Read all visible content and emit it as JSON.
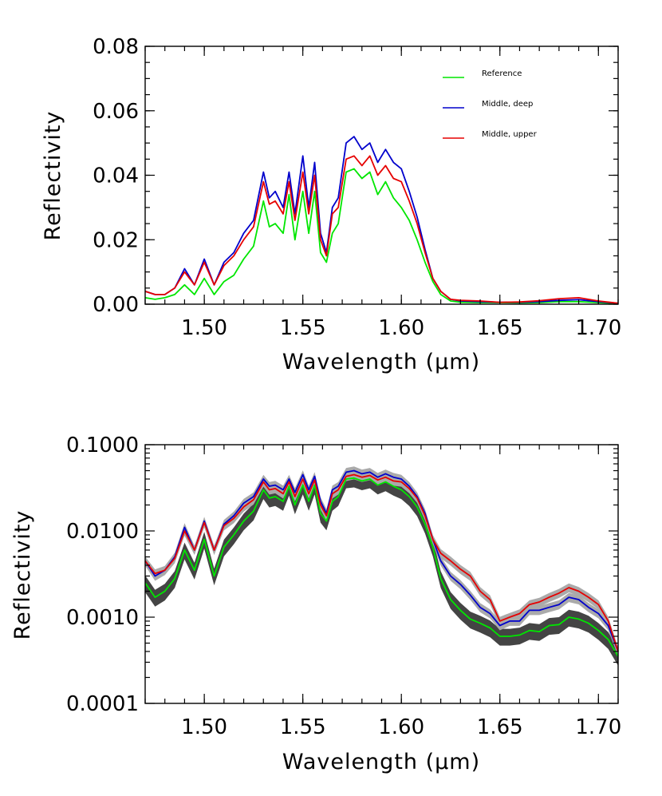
{
  "chart_data": [
    {
      "type": "line",
      "title": "",
      "xlabel": "Wavelength (μm)",
      "ylabel": "Reflectivity",
      "xlim": [
        1.47,
        1.71
      ],
      "ylim": [
        0.0,
        0.08
      ],
      "yscale": "linear",
      "xticks": [
        1.5,
        1.55,
        1.6,
        1.65,
        1.7
      ],
      "xtick_labels": [
        "1.50",
        "1.55",
        "1.60",
        "1.65",
        "1.70"
      ],
      "yticks": [
        0.0,
        0.02,
        0.04,
        0.06,
        0.08
      ],
      "ytick_labels": [
        "0.00",
        "0.02",
        "0.04",
        "0.06",
        "0.08"
      ],
      "grid": false,
      "legend_position": "top-right",
      "x": [
        1.47,
        1.475,
        1.48,
        1.485,
        1.49,
        1.495,
        1.5,
        1.505,
        1.51,
        1.515,
        1.52,
        1.525,
        1.53,
        1.533,
        1.536,
        1.54,
        1.543,
        1.546,
        1.55,
        1.553,
        1.556,
        1.559,
        1.562,
        1.565,
        1.568,
        1.572,
        1.576,
        1.58,
        1.584,
        1.588,
        1.592,
        1.596,
        1.6,
        1.604,
        1.608,
        1.612,
        1.616,
        1.62,
        1.625,
        1.63,
        1.64,
        1.65,
        1.66,
        1.67,
        1.68,
        1.69,
        1.7,
        1.71
      ],
      "series": [
        {
          "name": "Reference",
          "color": "#00e600",
          "values": [
            0.002,
            0.0015,
            0.002,
            0.003,
            0.006,
            0.003,
            0.008,
            0.003,
            0.007,
            0.009,
            0.014,
            0.018,
            0.032,
            0.024,
            0.025,
            0.022,
            0.034,
            0.02,
            0.035,
            0.022,
            0.035,
            0.016,
            0.013,
            0.022,
            0.025,
            0.041,
            0.042,
            0.039,
            0.041,
            0.034,
            0.038,
            0.033,
            0.03,
            0.026,
            0.02,
            0.013,
            0.007,
            0.003,
            0.001,
            0.0006,
            0.0005,
            0.0005,
            0.0004,
            0.0005,
            0.0008,
            0.0008,
            0.0005,
            0.0002
          ]
        },
        {
          "name": "Middle, deep",
          "color": "#0000cc",
          "values": [
            0.004,
            0.003,
            0.003,
            0.005,
            0.011,
            0.006,
            0.014,
            0.006,
            0.013,
            0.016,
            0.022,
            0.026,
            0.041,
            0.033,
            0.035,
            0.03,
            0.041,
            0.028,
            0.046,
            0.03,
            0.044,
            0.022,
            0.016,
            0.03,
            0.033,
            0.05,
            0.052,
            0.048,
            0.05,
            0.044,
            0.048,
            0.044,
            0.042,
            0.035,
            0.027,
            0.017,
            0.008,
            0.004,
            0.0015,
            0.001,
            0.0008,
            0.0006,
            0.0006,
            0.0008,
            0.0012,
            0.0014,
            0.0008,
            0.0003
          ]
        },
        {
          "name": "Middle, upper",
          "color": "#e60000",
          "values": [
            0.004,
            0.003,
            0.003,
            0.005,
            0.01,
            0.006,
            0.013,
            0.006,
            0.012,
            0.015,
            0.02,
            0.024,
            0.038,
            0.031,
            0.032,
            0.028,
            0.038,
            0.026,
            0.041,
            0.028,
            0.04,
            0.02,
            0.015,
            0.028,
            0.03,
            0.045,
            0.046,
            0.043,
            0.046,
            0.04,
            0.043,
            0.039,
            0.038,
            0.032,
            0.025,
            0.016,
            0.008,
            0.004,
            0.0015,
            0.0012,
            0.001,
            0.0006,
            0.0007,
            0.0011,
            0.0017,
            0.002,
            0.001,
            0.0003
          ]
        }
      ]
    },
    {
      "type": "line",
      "title": "",
      "xlabel": "Wavelength (μm)",
      "ylabel": "Reflectivity",
      "xlim": [
        1.47,
        1.71
      ],
      "ylim": [
        0.0001,
        0.1
      ],
      "yscale": "log",
      "xticks": [
        1.5,
        1.55,
        1.6,
        1.65,
        1.7
      ],
      "xtick_labels": [
        "1.50",
        "1.55",
        "1.60",
        "1.65",
        "1.70"
      ],
      "yticks": [
        0.0001,
        0.001,
        0.01,
        0.1
      ],
      "ytick_labels": [
        "0.0001",
        "0.0010",
        "0.0100",
        "0.1000"
      ],
      "grid": false,
      "band_colors": {
        "dark": "#444444",
        "light": "#aaaaaa"
      },
      "x": [
        1.47,
        1.475,
        1.48,
        1.485,
        1.49,
        1.495,
        1.5,
        1.505,
        1.51,
        1.515,
        1.52,
        1.525,
        1.53,
        1.533,
        1.536,
        1.54,
        1.543,
        1.546,
        1.55,
        1.553,
        1.556,
        1.559,
        1.562,
        1.565,
        1.568,
        1.572,
        1.576,
        1.58,
        1.584,
        1.588,
        1.592,
        1.596,
        1.6,
        1.604,
        1.608,
        1.612,
        1.616,
        1.62,
        1.625,
        1.63,
        1.635,
        1.64,
        1.645,
        1.65,
        1.655,
        1.66,
        1.665,
        1.67,
        1.675,
        1.68,
        1.685,
        1.69,
        1.695,
        1.7,
        1.705,
        1.71
      ],
      "series": [
        {
          "name": "Reference",
          "color": "#00e600",
          "values": [
            0.0025,
            0.0017,
            0.002,
            0.0028,
            0.006,
            0.0035,
            0.008,
            0.003,
            0.0065,
            0.009,
            0.013,
            0.017,
            0.03,
            0.024,
            0.025,
            0.022,
            0.033,
            0.02,
            0.034,
            0.022,
            0.034,
            0.016,
            0.013,
            0.022,
            0.025,
            0.04,
            0.041,
            0.038,
            0.04,
            0.034,
            0.037,
            0.033,
            0.03,
            0.025,
            0.019,
            0.012,
            0.0065,
            0.0028,
            0.0016,
            0.0012,
            0.00095,
            0.00085,
            0.00075,
            0.0006,
            0.0006,
            0.00062,
            0.0007,
            0.00068,
            0.0008,
            0.00082,
            0.001,
            0.00095,
            0.00085,
            0.0007,
            0.00055,
            0.00035
          ]
        },
        {
          "name": "Middle, deep",
          "color": "#0000cc",
          "values": [
            0.0045,
            0.003,
            0.0035,
            0.005,
            0.011,
            0.006,
            0.013,
            0.006,
            0.012,
            0.015,
            0.021,
            0.025,
            0.04,
            0.033,
            0.034,
            0.03,
            0.04,
            0.028,
            0.045,
            0.03,
            0.043,
            0.022,
            0.016,
            0.03,
            0.033,
            0.048,
            0.05,
            0.046,
            0.048,
            0.042,
            0.046,
            0.042,
            0.04,
            0.033,
            0.025,
            0.016,
            0.008,
            0.0045,
            0.003,
            0.0024,
            0.0018,
            0.0013,
            0.0011,
            0.0008,
            0.0009,
            0.0009,
            0.0012,
            0.0012,
            0.0013,
            0.0014,
            0.0017,
            0.0016,
            0.0013,
            0.0011,
            0.0008,
            0.0004
          ]
        },
        {
          "name": "Middle, upper",
          "color": "#e60000",
          "values": [
            0.0045,
            0.0032,
            0.0035,
            0.0048,
            0.01,
            0.006,
            0.0125,
            0.006,
            0.0115,
            0.014,
            0.019,
            0.023,
            0.037,
            0.03,
            0.031,
            0.027,
            0.037,
            0.025,
            0.04,
            0.027,
            0.039,
            0.02,
            0.015,
            0.027,
            0.03,
            0.043,
            0.045,
            0.042,
            0.044,
            0.039,
            0.042,
            0.038,
            0.037,
            0.031,
            0.024,
            0.015,
            0.008,
            0.0055,
            0.0045,
            0.0036,
            0.003,
            0.002,
            0.0016,
            0.0009,
            0.001,
            0.0011,
            0.0014,
            0.0015,
            0.0017,
            0.0019,
            0.0022,
            0.002,
            0.0017,
            0.0014,
            0.0009,
            0.0004
          ]
        }
      ]
    }
  ]
}
